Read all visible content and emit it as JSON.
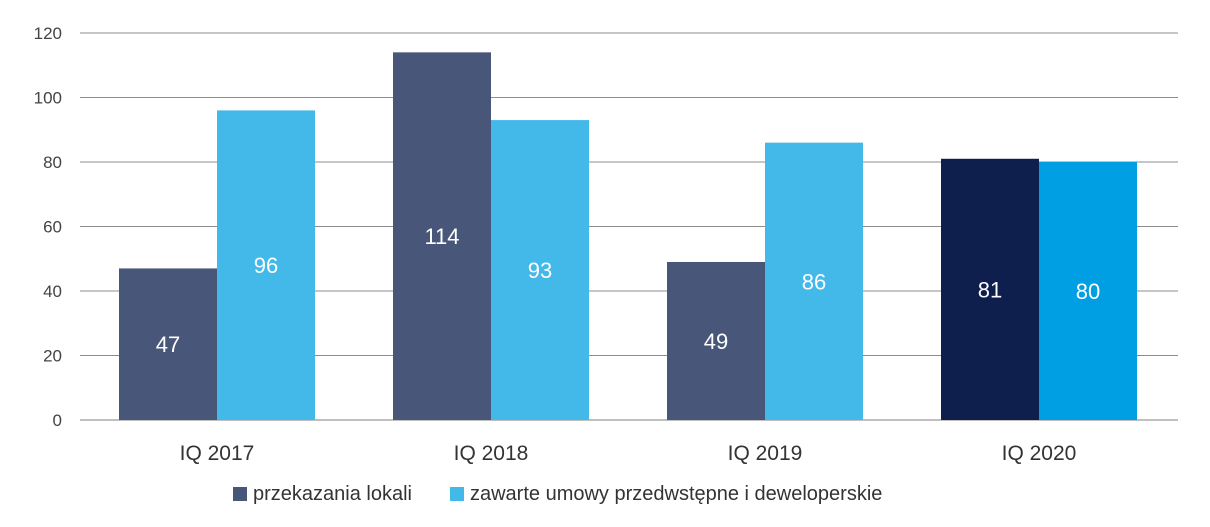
{
  "chart_data": {
    "type": "bar",
    "title": "",
    "xlabel": "",
    "ylabel": "",
    "categories": [
      "IQ 2017",
      "IQ 2018",
      "IQ 2019",
      "IQ 2020"
    ],
    "series": [
      {
        "name": "przekazania lokali",
        "values": [
          47,
          114,
          49,
          81
        ],
        "labels": [
          "47",
          "114",
          "49",
          "81"
        ],
        "color": "#48567a",
        "highlight_color": "#0e1f4d"
      },
      {
        "name": "zawarte umowy przedwstępne i deweloperskie",
        "values": [
          96,
          93,
          86,
          80
        ],
        "labels": [
          "96",
          "93",
          "86",
          "80"
        ],
        "color": "#42b9e8",
        "highlight_color": "#009fe3"
      }
    ],
    "highlight_category_index": 3,
    "ylim": [
      0,
      120
    ],
    "yticks": [
      0,
      20,
      40,
      60,
      80,
      100,
      120
    ],
    "ytick_labels": [
      "0",
      "20",
      "40",
      "60",
      "80",
      "100",
      "120"
    ],
    "grid": true,
    "legend_position": "bottom"
  }
}
